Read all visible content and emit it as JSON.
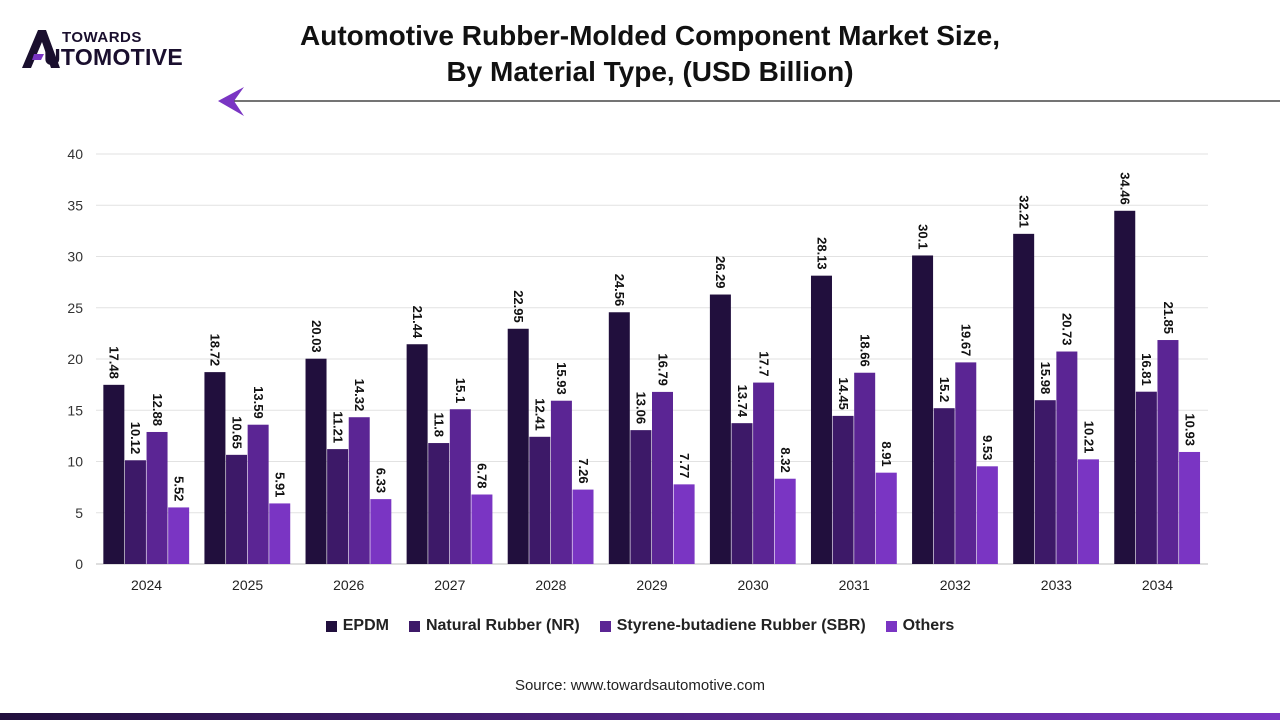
{
  "brand": {
    "top_text": "TOWARDS",
    "bottom_text": "UTOMOTIVE"
  },
  "header": {
    "title_line1": "Automotive Rubber-Molded Component Market Size,",
    "title_line2": "By Material Type, (USD Billion)"
  },
  "source": "Source: www.towardsautomotive.com",
  "colors": {
    "EPDM": "#210f3d",
    "NR": "#3d1968",
    "SBR": "#5b2594",
    "Others": "#7a35c3",
    "accent": "#7a35c3",
    "bottom_bar_start": "#210f3d",
    "bottom_bar_end": "#7a35c3"
  },
  "chart_data": {
    "type": "bar",
    "title": "Automotive Rubber-Molded Component Market Size, By Material Type, (USD Billion)",
    "xlabel": "",
    "ylabel": "",
    "ylim": [
      0,
      40
    ],
    "yticks": [
      0,
      5,
      10,
      15,
      20,
      25,
      30,
      35,
      40
    ],
    "grid": true,
    "legend_position": "bottom",
    "categories": [
      "2024",
      "2025",
      "2026",
      "2027",
      "2028",
      "2029",
      "2030",
      "2031",
      "2032",
      "2033",
      "2034"
    ],
    "series": [
      {
        "name": "EPDM",
        "color_key": "EPDM",
        "values": [
          17.48,
          18.72,
          20.03,
          21.44,
          22.95,
          24.56,
          26.29,
          28.13,
          30.1,
          32.21,
          34.46
        ]
      },
      {
        "name": "Natural Rubber (NR)",
        "color_key": "NR",
        "values": [
          10.12,
          10.65,
          11.21,
          11.8,
          12.41,
          13.06,
          13.74,
          14.45,
          15.2,
          15.98,
          16.81
        ]
      },
      {
        "name": "Styrene-butadiene Rubber (SBR)",
        "color_key": "SBR",
        "values": [
          12.88,
          13.59,
          14.32,
          15.1,
          15.93,
          16.79,
          17.7,
          18.66,
          19.67,
          20.73,
          21.85
        ]
      },
      {
        "name": "Others",
        "color_key": "Others",
        "values": [
          5.52,
          5.91,
          6.33,
          6.78,
          7.26,
          7.77,
          8.32,
          8.91,
          9.53,
          10.21,
          10.93
        ]
      }
    ]
  }
}
